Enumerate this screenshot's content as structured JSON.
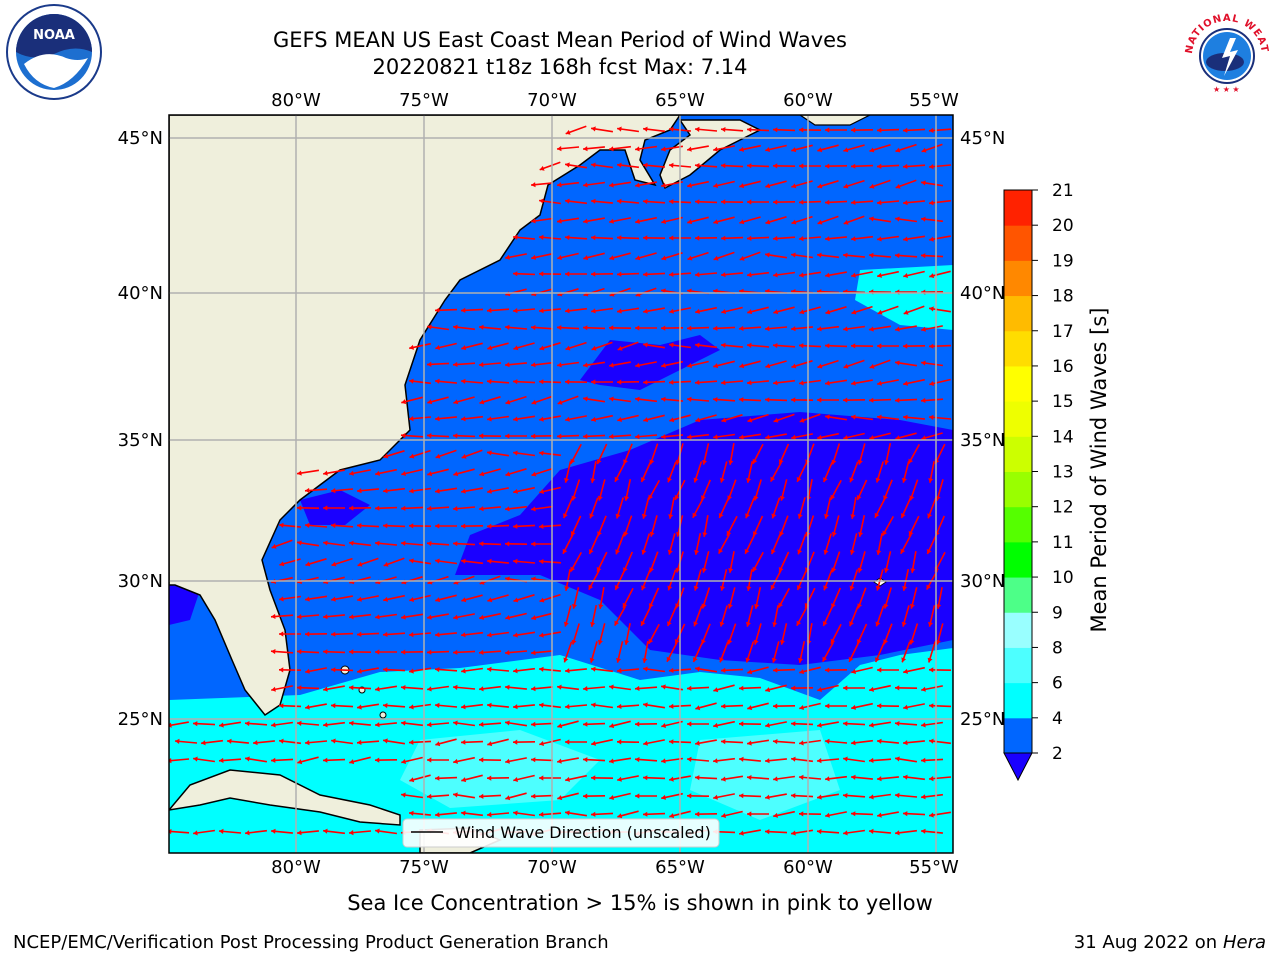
{
  "header": {
    "title_line1": "GEFS MEAN US East Coast Mean Period of Wind Waves",
    "title_line2": "20220821 t18z 168h fcst   Max: 7.14"
  },
  "map": {
    "lon_labels": [
      "80°W",
      "75°W",
      "70°W",
      "65°W",
      "60°W",
      "55°W"
    ],
    "lat_labels": [
      "45°N",
      "40°N",
      "35°N",
      "30°N",
      "25°N"
    ],
    "legend_label": "Wind Wave Direction (unscaled)",
    "colors": {
      "land": "#efefdc",
      "gridline": "#b0b0b0",
      "arrow": "#ff0000",
      "coast": "#000000"
    }
  },
  "colorbar": {
    "label": "Mean Period of Wind Waves [s]",
    "ticks": [
      "2",
      "4",
      "6",
      "8",
      "9",
      "10",
      "11",
      "12",
      "13",
      "14",
      "15",
      "16",
      "17",
      "18",
      "19",
      "20",
      "21"
    ],
    "colors": [
      "#0066ff",
      "#00ffff",
      "#4dffff",
      "#99ffff",
      "#4dff88",
      "#00ff00",
      "#55ff00",
      "#99ff00",
      "#ccff00",
      "#eeff00",
      "#ffff00",
      "#ffdd00",
      "#ffbb00",
      "#ff8800",
      "#ff5500",
      "#ff2200"
    ],
    "under_color": "#1a00ff"
  },
  "footer": {
    "ice_note": "Sea Ice Concentration > 15% is shown in pink to yellow",
    "branch": "NCEP/EMC/Verification Post Processing Product Generation Branch",
    "date": "31 Aug 2022 on",
    "machine": "Hera"
  },
  "logos": {
    "noaa_text": "NOAA",
    "nws_text": "NATIONAL WEATHER SERVICE"
  }
}
